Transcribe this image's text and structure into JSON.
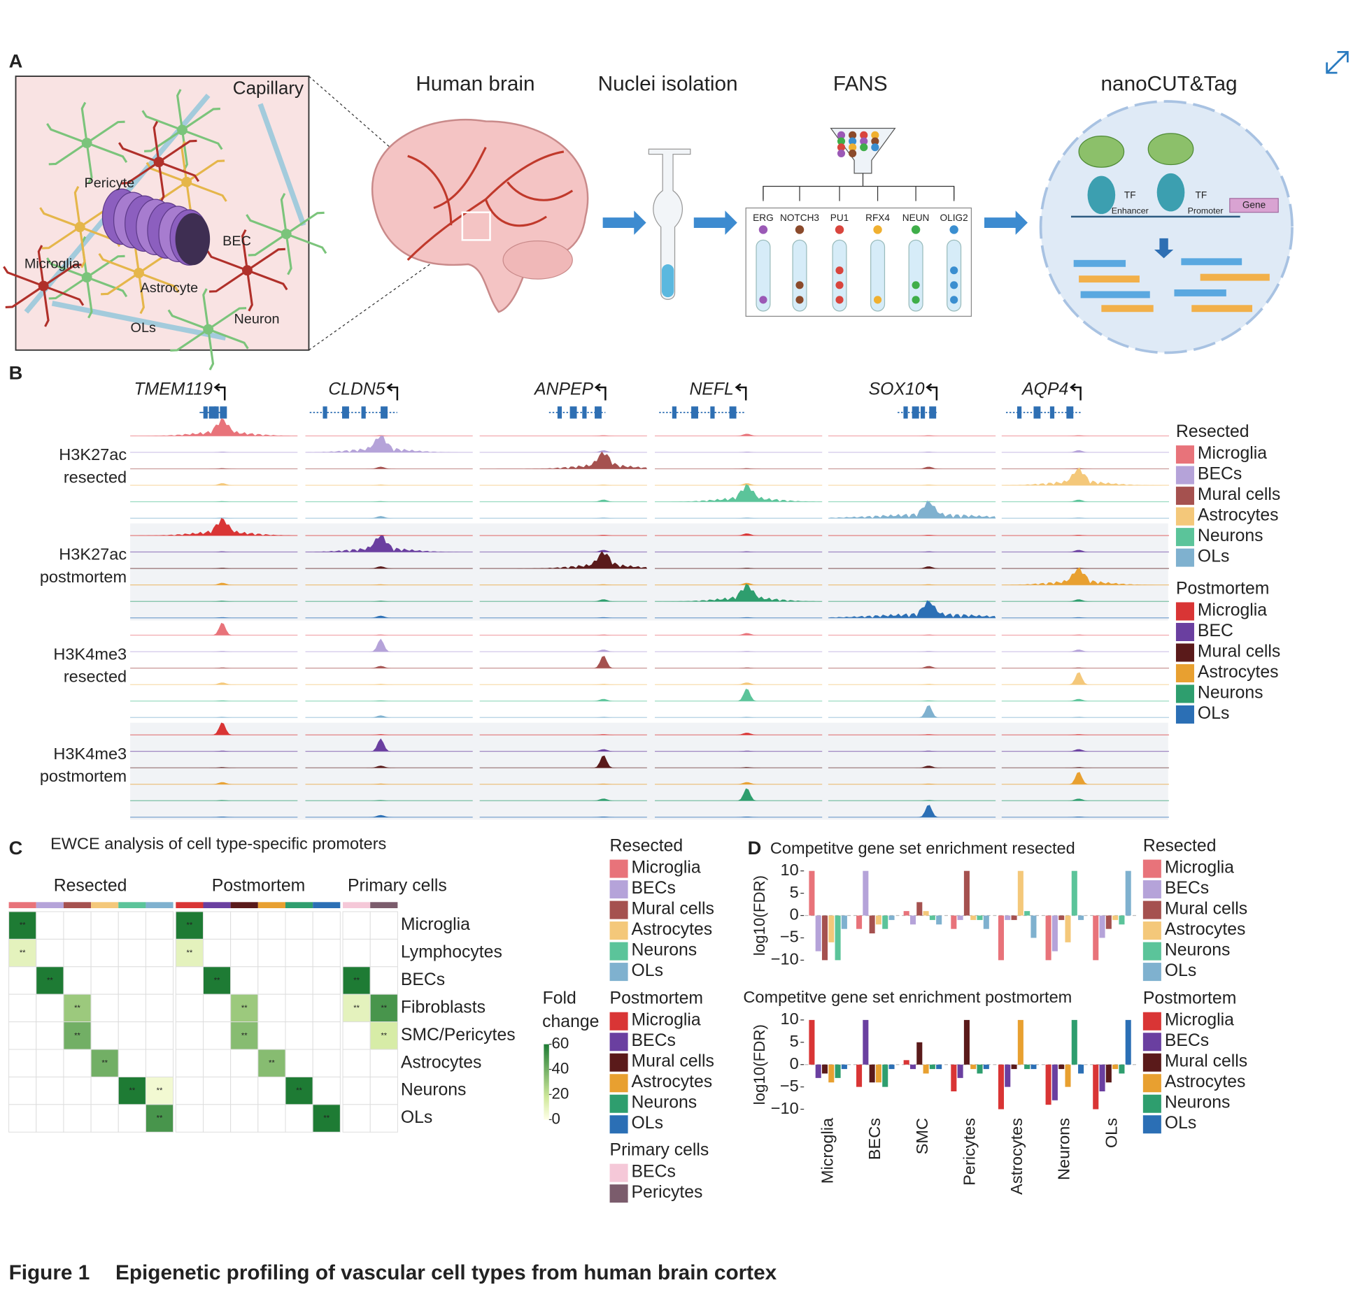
{
  "figure": {
    "panel_labels": [
      "A",
      "B",
      "C",
      "D"
    ],
    "caption_label": "Figure 1",
    "caption_title": "Epigenetic profiling of vascular cell types from human brain cortex"
  },
  "panel_a": {
    "capillary": "Capillary",
    "cells": [
      {
        "name": "Pericyte",
        "color": "#c8802e"
      },
      {
        "name": "BEC",
        "color": "#8a62c9"
      },
      {
        "name": "Microglia",
        "color": "#c0392b"
      },
      {
        "name": "Astrocyte",
        "color": "#d2a32a"
      },
      {
        "name": "OLs",
        "color": "#86acd9"
      },
      {
        "name": "Neuron",
        "color": "#5db35d"
      }
    ],
    "steps": [
      "Human brain",
      "Nuclei isolation",
      "FANS",
      "nanoCUT&Tag"
    ],
    "markers": [
      {
        "name": "ERG",
        "color": "#9b59b6"
      },
      {
        "name": "NOTCH3",
        "color": "#8b4a2b"
      },
      {
        "name": "PU1",
        "color": "#d9453d"
      },
      {
        "name": "RFX4",
        "color": "#f0b030"
      },
      {
        "name": "NEUN",
        "color": "#3fae49"
      },
      {
        "name": "OLIG2",
        "color": "#3a8ed0"
      }
    ],
    "mechanism": [
      "TF",
      "Enhancer",
      "TF",
      "Promoter",
      "Gene"
    ]
  },
  "panel_b": {
    "genes": [
      "TMEM119",
      "CLDN5",
      "ANPEP",
      "NEFL",
      "SOX10",
      "AQP4"
    ],
    "track_groups": [
      [
        "H3K27ac",
        "resected"
      ],
      [
        "H3K27ac",
        "postmortem"
      ],
      [
        "H3K4me3",
        "resected"
      ],
      [
        "H3K4me3",
        "postmortem"
      ]
    ],
    "legend": [
      {
        "title": "Resected",
        "items": [
          {
            "name": "Microglia",
            "color": "#e8737a"
          },
          {
            "name": "BECs",
            "color": "#b5a3d9"
          },
          {
            "name": "Mural cells",
            "color": "#a5514f"
          },
          {
            "name": "Astrocytes",
            "color": "#f4c87a"
          },
          {
            "name": "Neurons",
            "color": "#5bc49a"
          },
          {
            "name": "OLs",
            "color": "#7fb1cf"
          }
        ]
      },
      {
        "title": "Postmortem",
        "items": [
          {
            "name": "Microglia",
            "color": "#d93535"
          },
          {
            "name": "BEC",
            "color": "#6a3fa0"
          },
          {
            "name": "Mural cells",
            "color": "#5a1a1a"
          },
          {
            "name": "Astrocytes",
            "color": "#e8a030"
          },
          {
            "name": "Neurons",
            "color": "#2e9e6e"
          },
          {
            "name": "OLs",
            "color": "#2b6fb5"
          }
        ]
      }
    ]
  },
  "chart_data": [
    {
      "type": "heatmap",
      "title": "EWCE analysis of cell type-specific promoters",
      "column_groups": [
        {
          "name": "Resected",
          "series": [
            {
              "name": "Microglia",
              "color": "#e8737a"
            },
            {
              "name": "BECs",
              "color": "#b5a3d9"
            },
            {
              "name": "Mural cells",
              "color": "#a5514f"
            },
            {
              "name": "Astrocytes",
              "color": "#f4c87a"
            },
            {
              "name": "Neurons",
              "color": "#5bc49a"
            },
            {
              "name": "OLs",
              "color": "#7fb1cf"
            }
          ]
        },
        {
          "name": "Postmortem",
          "series": [
            {
              "name": "Microglia",
              "color": "#d93535"
            },
            {
              "name": "BECs",
              "color": "#6a3fa0"
            },
            {
              "name": "Mural cells",
              "color": "#5a1a1a"
            },
            {
              "name": "Astrocytes",
              "color": "#e8a030"
            },
            {
              "name": "Neurons",
              "color": "#2e9e6e"
            },
            {
              "name": "OLs",
              "color": "#2b6fb5"
            }
          ]
        },
        {
          "name": "Primary cells",
          "series": [
            {
              "name": "BECs",
              "color": "#f5c8d8"
            },
            {
              "name": "Pericytes",
              "color": "#7b5c6c"
            }
          ]
        }
      ],
      "rows": [
        "Microglia",
        "Lymphocytes",
        "BECs",
        "Fibroblasts",
        "SMC/Pericytes",
        "Astrocytes",
        "Neurons",
        "OLs"
      ],
      "values": [
        [
          60,
          0,
          0,
          0,
          0,
          0,
          60,
          0,
          0,
          0,
          0,
          0,
          0,
          0
        ],
        [
          10,
          0,
          0,
          0,
          0,
          0,
          10,
          0,
          0,
          0,
          0,
          0,
          0,
          0
        ],
        [
          0,
          60,
          0,
          0,
          0,
          0,
          0,
          60,
          0,
          0,
          0,
          0,
          60,
          0
        ],
        [
          0,
          0,
          30,
          0,
          0,
          0,
          0,
          0,
          30,
          0,
          0,
          0,
          10,
          50
        ],
        [
          0,
          0,
          40,
          0,
          0,
          0,
          0,
          0,
          35,
          0,
          0,
          0,
          0,
          15
        ],
        [
          0,
          0,
          0,
          40,
          0,
          0,
          0,
          0,
          0,
          35,
          0,
          0,
          0,
          0
        ],
        [
          0,
          0,
          0,
          0,
          60,
          5,
          0,
          0,
          0,
          0,
          60,
          0,
          0,
          0
        ],
        [
          0,
          0,
          0,
          0,
          0,
          50,
          0,
          0,
          0,
          0,
          0,
          60,
          0,
          0
        ]
      ],
      "value_labels": [
        [
          "**",
          null,
          null,
          null,
          null,
          null,
          "**",
          null,
          null,
          null,
          null,
          null,
          null,
          null
        ],
        [
          "**",
          null,
          null,
          null,
          null,
          null,
          "**",
          null,
          null,
          null,
          null,
          null,
          null,
          null
        ],
        [
          null,
          "**",
          null,
          null,
          null,
          null,
          null,
          "**",
          null,
          null,
          null,
          null,
          "**",
          null
        ],
        [
          null,
          null,
          "**",
          null,
          null,
          null,
          null,
          null,
          "**",
          null,
          null,
          null,
          "**",
          "**"
        ],
        [
          null,
          null,
          "**",
          null,
          null,
          null,
          null,
          null,
          "**",
          null,
          null,
          null,
          null,
          "**"
        ],
        [
          null,
          null,
          null,
          "**",
          null,
          null,
          null,
          null,
          null,
          "**",
          null,
          null,
          null,
          null
        ],
        [
          null,
          null,
          null,
          null,
          "**",
          "**",
          null,
          null,
          null,
          null,
          "**",
          null,
          null,
          null
        ],
        [
          null,
          null,
          null,
          null,
          null,
          "**",
          null,
          null,
          null,
          null,
          null,
          "**",
          null,
          null
        ]
      ],
      "colorbar_title": [
        "Fold",
        "change"
      ],
      "clim": [
        0,
        60
      ],
      "cticks": [
        0,
        20,
        40,
        60
      ]
    },
    {
      "type": "bar",
      "title": "Competitve gene set enrichment resected",
      "ylabel": "log10(FDR)",
      "legend_title": "Resected",
      "categories": [
        null,
        null,
        null,
        null,
        null,
        null,
        null
      ],
      "series": [
        {
          "name": "Microglia",
          "color": "#e8737a",
          "values": [
            10,
            -3,
            1,
            -3,
            -10,
            -10,
            -10
          ]
        },
        {
          "name": "BECs",
          "color": "#b5a3d9",
          "values": [
            -8,
            10,
            -2,
            -1,
            -1,
            -8,
            -5
          ]
        },
        {
          "name": "Mural cells",
          "color": "#a5514f",
          "values": [
            -10,
            -4,
            3,
            10,
            -1,
            -1,
            -3
          ]
        },
        {
          "name": "Astrocytes",
          "color": "#f4c87a",
          "values": [
            -6,
            -2,
            1,
            -1,
            10,
            -6,
            -1
          ]
        },
        {
          "name": "Neurons",
          "color": "#5bc49a",
          "values": [
            -10,
            -3,
            -1,
            -1,
            1,
            10,
            -2
          ]
        },
        {
          "name": "OLs",
          "color": "#7fb1cf",
          "values": [
            -3,
            -1,
            -2,
            -3,
            -5,
            -1,
            10
          ]
        }
      ],
      "ylim": [
        -10,
        10
      ],
      "yticks": [
        {
          "value": -10,
          "label": "−10"
        },
        {
          "value": -5,
          "label": "−5"
        },
        0,
        5,
        10
      ]
    },
    {
      "type": "bar",
      "title": "Competitve gene set enrichment postmortem",
      "ylabel": "log10(FDR)",
      "legend_title": "Postmortem",
      "categories": [
        "Microglia",
        "BECs",
        "SMC",
        "Pericytes",
        "Astrocytes",
        "Neurons",
        "OLs"
      ],
      "series": [
        {
          "name": "Microglia",
          "color": "#d93535",
          "values": [
            10,
            -5,
            1,
            -6,
            -10,
            -9,
            -10
          ]
        },
        {
          "name": "BECs",
          "color": "#6a3fa0",
          "values": [
            -3,
            10,
            -1,
            -3,
            -5,
            -8,
            -6
          ]
        },
        {
          "name": "Mural cells",
          "color": "#5a1a1a",
          "values": [
            -2,
            -4,
            5,
            10,
            -1,
            -1,
            -4
          ]
        },
        {
          "name": "Astrocytes",
          "color": "#e8a030",
          "values": [
            -4,
            -4,
            -2,
            -1,
            10,
            -5,
            -1
          ]
        },
        {
          "name": "Neurons",
          "color": "#2e9e6e",
          "values": [
            -3,
            -5,
            -1,
            -2,
            -1,
            10,
            -2
          ]
        },
        {
          "name": "OLs",
          "color": "#2b6fb5",
          "values": [
            -1,
            -1,
            -1,
            -1,
            -1,
            -2,
            10
          ]
        }
      ],
      "ylim": [
        -10,
        10
      ],
      "yticks": [
        {
          "value": -10,
          "label": "−10"
        },
        {
          "value": -5,
          "label": "−5"
        },
        0,
        5,
        10
      ]
    }
  ]
}
